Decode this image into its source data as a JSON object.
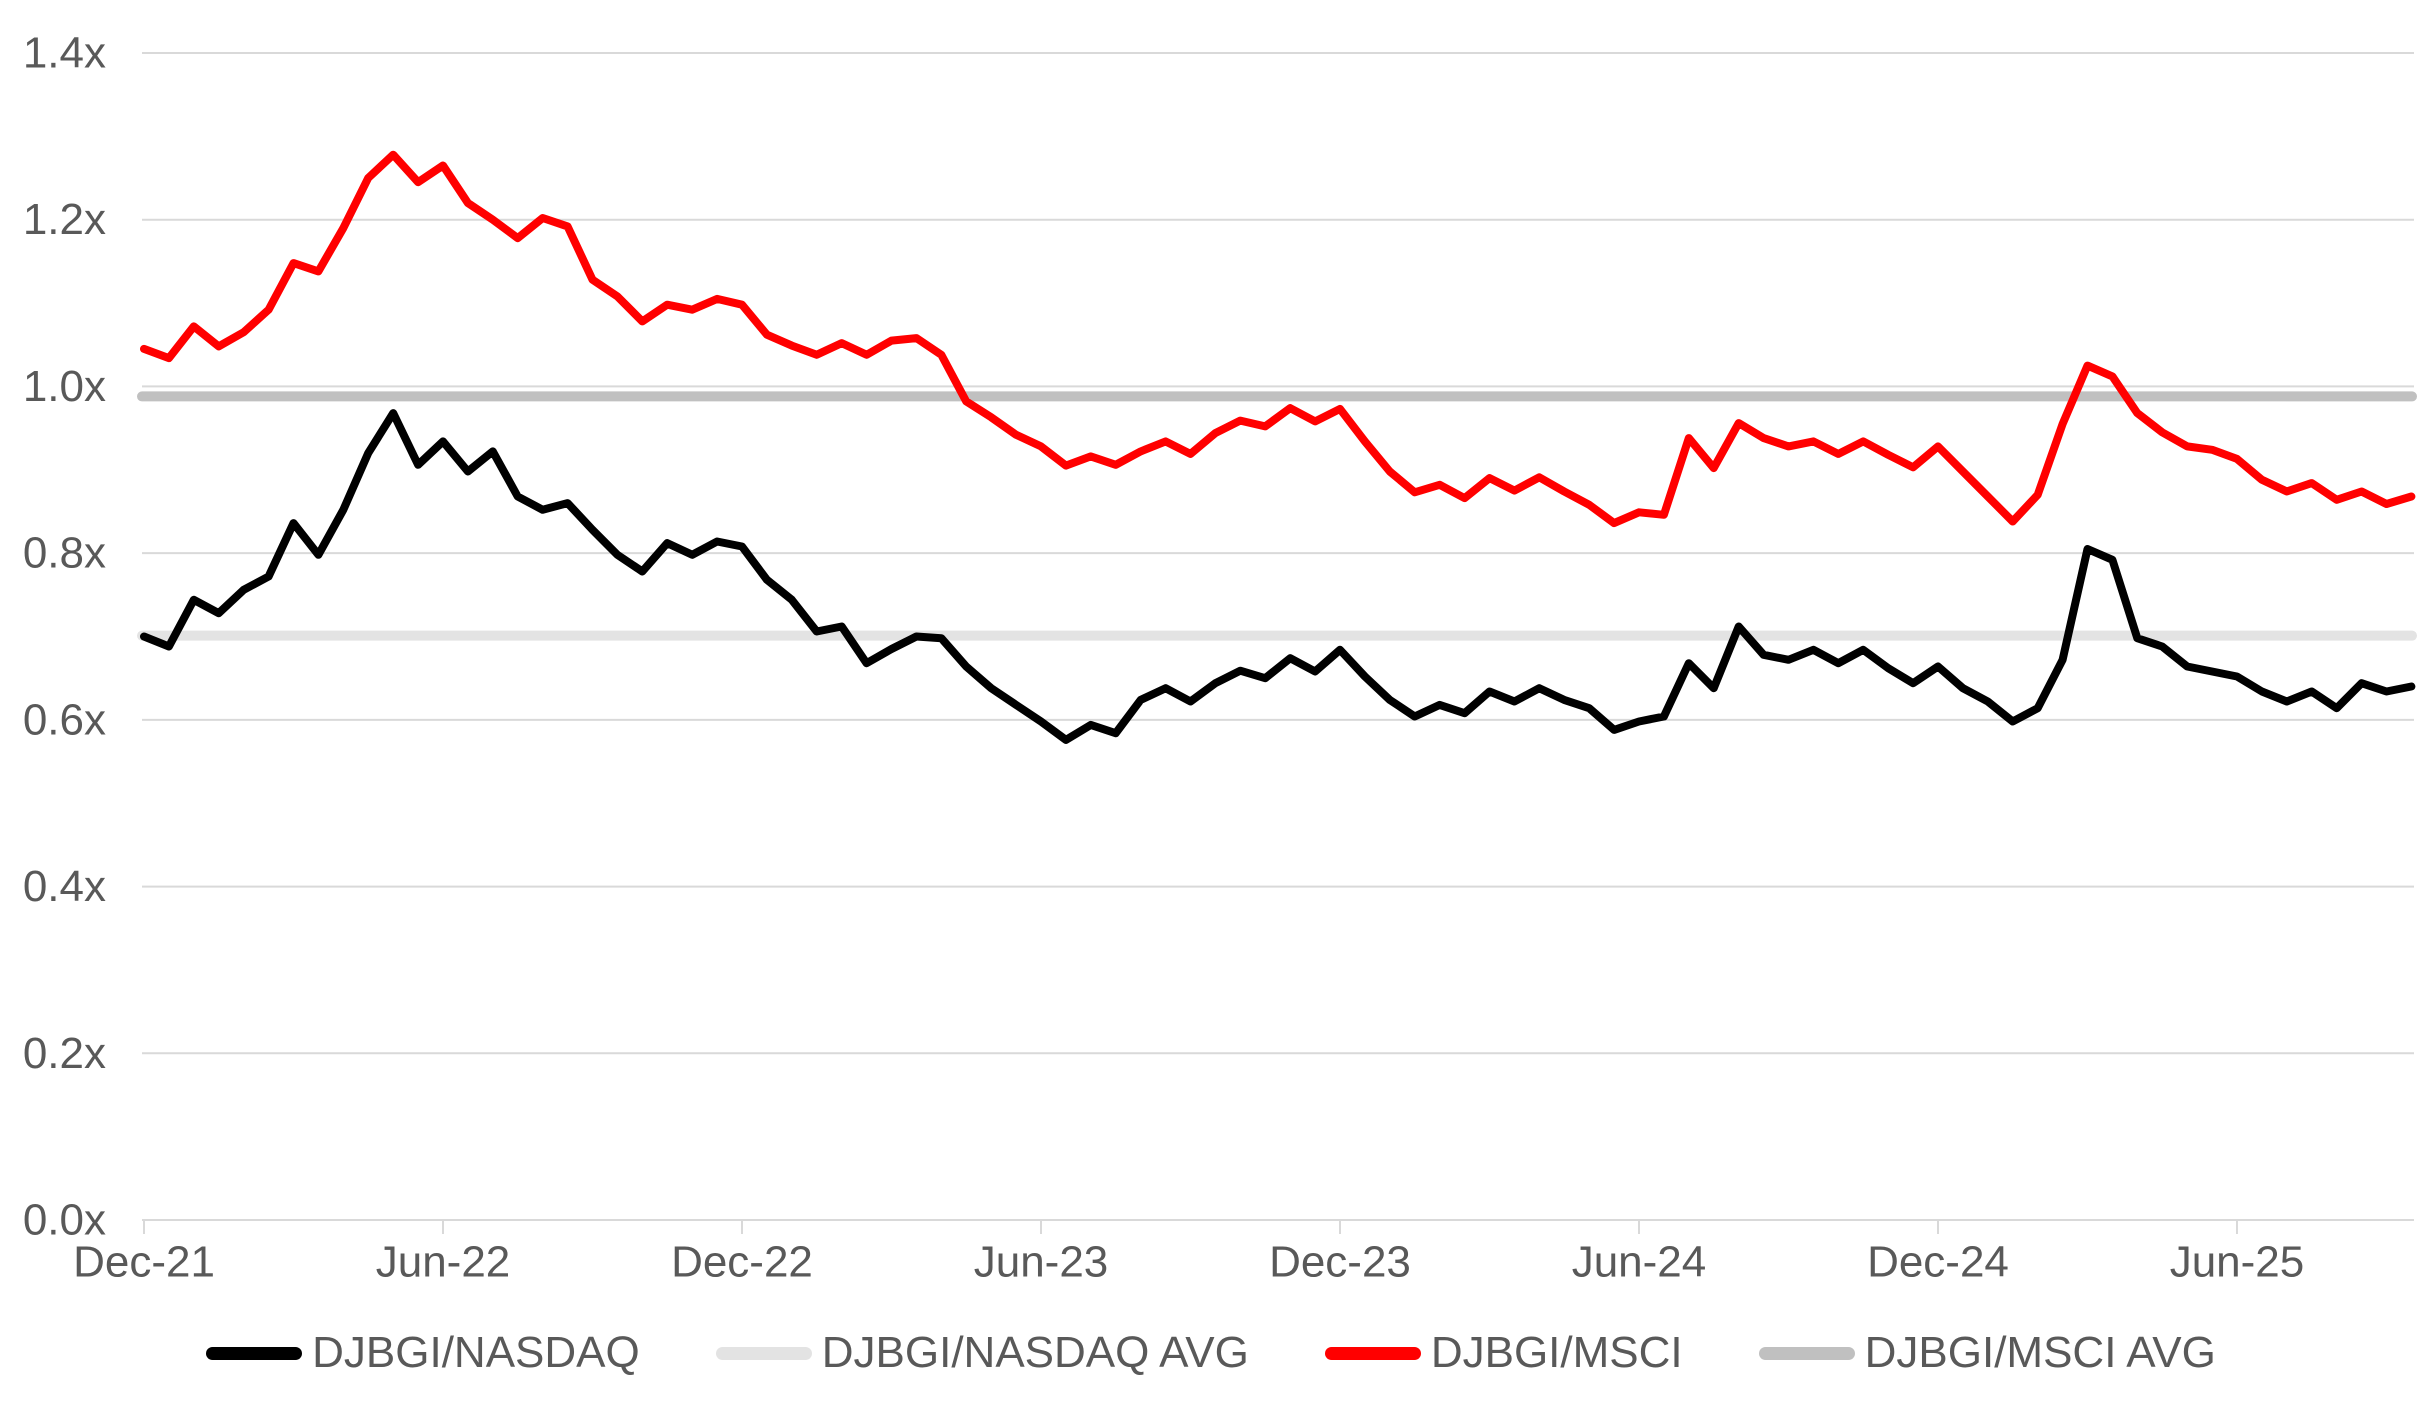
{
  "chart_data": {
    "type": "line",
    "title": "",
    "y_axis": {
      "ylim": [
        0,
        1.4
      ],
      "tick_values": [
        0,
        0.2,
        0.4,
        0.6,
        0.8,
        1.0,
        1.2,
        1.4
      ],
      "tick_labels": [
        "0.0x",
        "0.2x",
        "0.4x",
        "0.6x",
        "0.8x",
        "1.0x",
        "1.2x",
        "1.4x"
      ],
      "grid": true
    },
    "x_axis": {
      "tick_labels": [
        "Dec-21",
        "Jun-22",
        "Dec-22",
        "Jun-23",
        "Dec-23",
        "Jun-24",
        "Dec-24",
        "Jun-25"
      ],
      "tick_months": [
        0,
        6,
        12,
        18,
        24,
        30,
        36,
        42
      ]
    },
    "sampling": {
      "x_start_month": 0,
      "x_step_months": 0.5,
      "note": "months after Dec-21, approx fortnightly samples read from plot"
    },
    "series": [
      {
        "name": "DJBGI/NASDAQ",
        "type": "line",
        "color": "#000000",
        "values": [
          0.7,
          0.688,
          0.744,
          0.728,
          0.756,
          0.772,
          0.836,
          0.798,
          0.852,
          0.92,
          0.968,
          0.906,
          0.934,
          0.898,
          0.922,
          0.868,
          0.852,
          0.86,
          0.828,
          0.798,
          0.778,
          0.812,
          0.798,
          0.814,
          0.808,
          0.768,
          0.744,
          0.706,
          0.712,
          0.668,
          0.685,
          0.7,
          0.698,
          0.664,
          0.638,
          0.618,
          0.598,
          0.576,
          0.594,
          0.584,
          0.624,
          0.638,
          0.622,
          0.644,
          0.659,
          0.65,
          0.674,
          0.658,
          0.684,
          0.652,
          0.624,
          0.604,
          0.618,
          0.608,
          0.634,
          0.622,
          0.638,
          0.624,
          0.614,
          0.588,
          0.598,
          0.604,
          0.668,
          0.638,
          0.712,
          0.678,
          0.672,
          0.684,
          0.668,
          0.684,
          0.662,
          0.644,
          0.664,
          0.638,
          0.622,
          0.598,
          0.614,
          0.672,
          0.805,
          0.792,
          0.698,
          0.688,
          0.664,
          0.658,
          0.652,
          0.634,
          0.622,
          0.634,
          0.614,
          0.644,
          0.634,
          0.64
        ]
      },
      {
        "name": "DJBGI/NASDAQ AVG",
        "type": "hline",
        "color": "#E3E3E3",
        "value": 0.701
      },
      {
        "name": "DJBGI/MSCI",
        "type": "line",
        "color": "#FF0000",
        "values": [
          1.045,
          1.034,
          1.072,
          1.048,
          1.065,
          1.092,
          1.148,
          1.138,
          1.19,
          1.25,
          1.278,
          1.245,
          1.265,
          1.22,
          1.2,
          1.178,
          1.202,
          1.192,
          1.128,
          1.108,
          1.078,
          1.098,
          1.092,
          1.105,
          1.098,
          1.062,
          1.049,
          1.038,
          1.052,
          1.038,
          1.055,
          1.058,
          1.038,
          0.982,
          0.963,
          0.942,
          0.928,
          0.905,
          0.916,
          0.906,
          0.922,
          0.934,
          0.919,
          0.944,
          0.959,
          0.952,
          0.974,
          0.958,
          0.973,
          0.934,
          0.898,
          0.873,
          0.882,
          0.866,
          0.89,
          0.875,
          0.891,
          0.874,
          0.858,
          0.836,
          0.849,
          0.846,
          0.938,
          0.902,
          0.956,
          0.938,
          0.928,
          0.934,
          0.919,
          0.934,
          0.918,
          0.903,
          0.928,
          0.898,
          0.868,
          0.838,
          0.87,
          0.955,
          1.025,
          1.012,
          0.968,
          0.945,
          0.928,
          0.924,
          0.913,
          0.888,
          0.874,
          0.884,
          0.864,
          0.874,
          0.859,
          0.868
        ]
      },
      {
        "name": "DJBGI/MSCI AVG",
        "type": "hline",
        "color": "#C0C0C0",
        "value": 0.988
      }
    ],
    "legend_position": "bottom",
    "grid": "horizontal"
  },
  "styles": {
    "grid_color": "#D9D9D9",
    "axis_color": "#D9D9D9",
    "text_color": "#595959",
    "background": "#FFFFFF"
  }
}
